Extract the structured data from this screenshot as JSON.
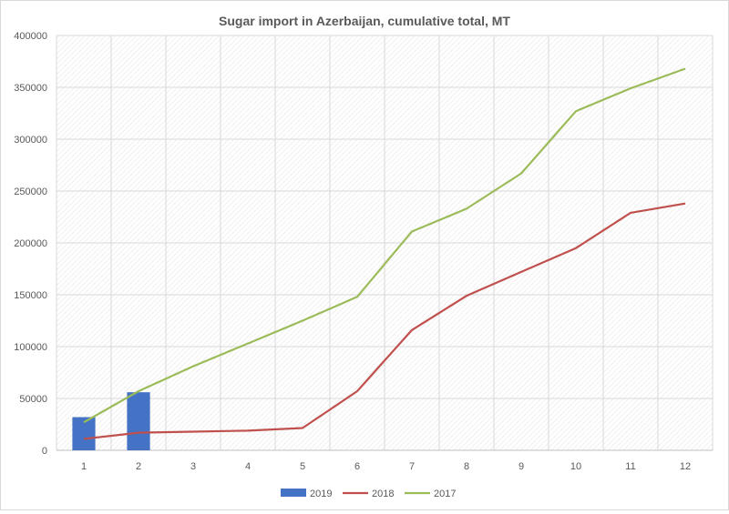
{
  "chart_data": {
    "type": "bar+line",
    "title": "Sugar import in Azerbaijan, cumulative total, MT",
    "xlabel": "",
    "ylabel": "",
    "categories": [
      "1",
      "2",
      "3",
      "4",
      "5",
      "6",
      "7",
      "8",
      "9",
      "10",
      "11",
      "12"
    ],
    "ylim": [
      0,
      400000
    ],
    "yticks": [
      "0",
      "50000",
      "100000",
      "150000",
      "200000",
      "250000",
      "300000",
      "350000",
      "400000"
    ],
    "grid": true,
    "legend_position": "bottom",
    "series": [
      {
        "name": "2019",
        "kind": "bar",
        "color": "#4472c4",
        "values": [
          32000,
          56000,
          null,
          null,
          null,
          null,
          null,
          null,
          null,
          null,
          null,
          null
        ]
      },
      {
        "name": "2018",
        "kind": "line",
        "color": "#c0504d",
        "values": [
          11000,
          17000,
          18000,
          19000,
          21500,
          57000,
          116000,
          149000,
          172000,
          195000,
          229000,
          238000
        ]
      },
      {
        "name": "2017",
        "kind": "line",
        "color": "#9bbb59",
        "values": [
          27000,
          57000,
          81000,
          103000,
          125000,
          148000,
          211000,
          233000,
          267000,
          327000,
          349000,
          368000
        ]
      }
    ]
  }
}
